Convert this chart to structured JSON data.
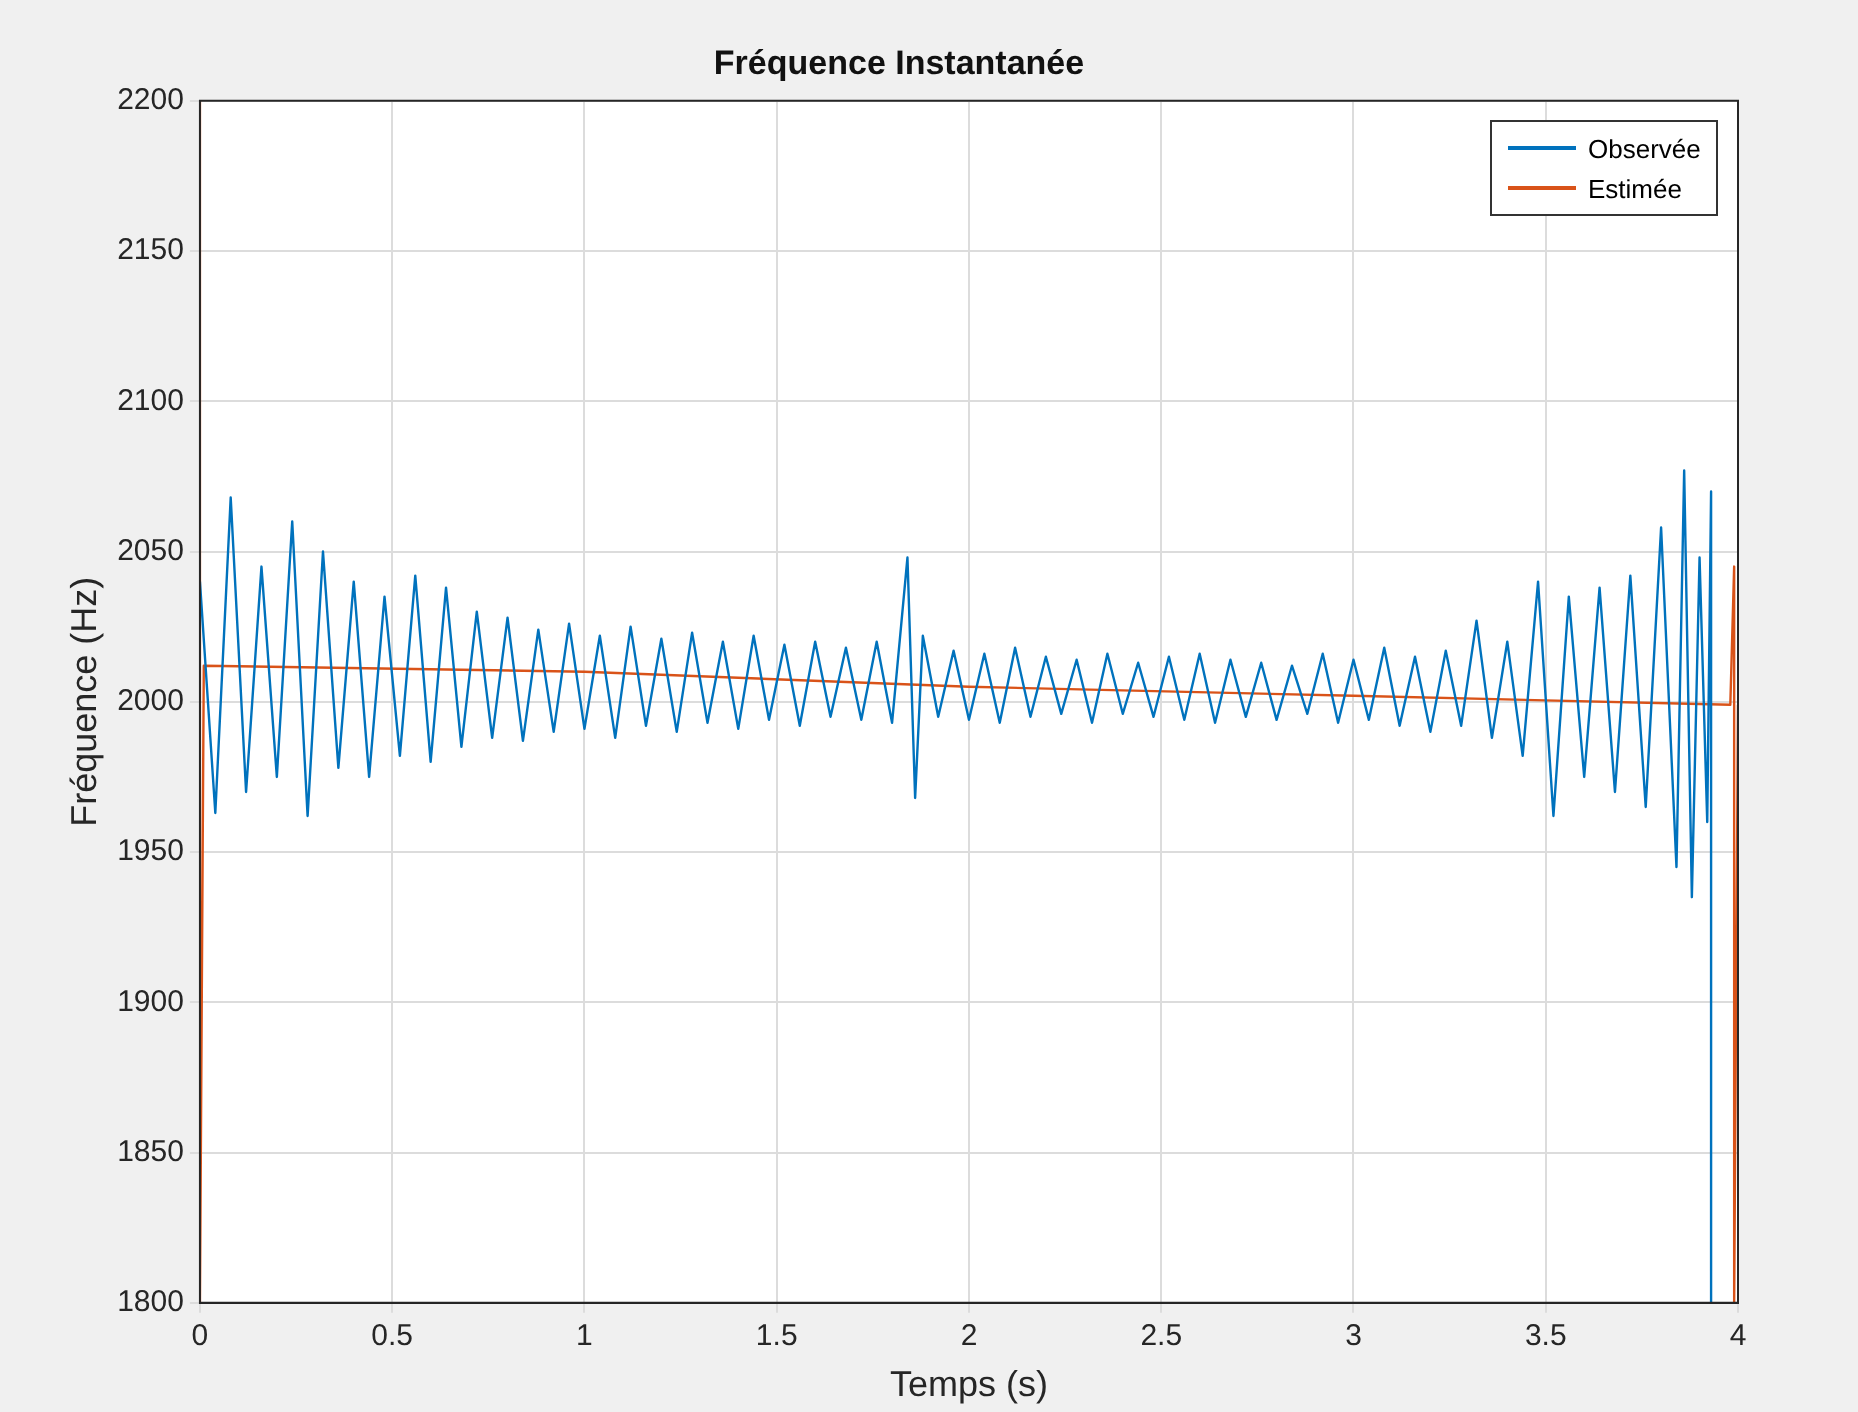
{
  "chart_data": {
    "type": "line",
    "title": "Fréquence Instantanée",
    "xlabel": "Temps (s)",
    "ylabel": "Fréquence (Hz)",
    "xlim": [
      0,
      4
    ],
    "xticks": [
      0,
      0.5,
      1,
      1.5,
      2,
      2.5,
      3,
      3.5,
      4
    ],
    "ylim": [
      1800,
      2200
    ],
    "yticks": [
      1800,
      1850,
      1900,
      1950,
      2000,
      2050,
      2100,
      2150,
      2200
    ],
    "grid": true,
    "legend": "top right",
    "marker": "none",
    "line_style": "solid",
    "series": [
      {
        "name": "Observée",
        "color": "#0072bd",
        "x": [
          0,
          0.04,
          0.08,
          0.12,
          0.16,
          0.2,
          0.24,
          0.28,
          0.32,
          0.36,
          0.4,
          0.44,
          0.48,
          0.52,
          0.56,
          0.6,
          0.64,
          0.68,
          0.72,
          0.76,
          0.8,
          0.84,
          0.88,
          0.92,
          0.96,
          1,
          1.04,
          1.08,
          1.12,
          1.16,
          1.2,
          1.24,
          1.28,
          1.32,
          1.36,
          1.4,
          1.44,
          1.48,
          1.52,
          1.56,
          1.6,
          1.64,
          1.68,
          1.72,
          1.76,
          1.8,
          1.84,
          1.86,
          1.88,
          1.92,
          1.96,
          2,
          2.04,
          2.08,
          2.12,
          2.16,
          2.2,
          2.24,
          2.28,
          2.32,
          2.36,
          2.4,
          2.44,
          2.48,
          2.52,
          2.56,
          2.6,
          2.64,
          2.68,
          2.72,
          2.76,
          2.8,
          2.84,
          2.88,
          2.92,
          2.96,
          3,
          3.04,
          3.08,
          3.12,
          3.16,
          3.2,
          3.24,
          3.28,
          3.32,
          3.36,
          3.4,
          3.44,
          3.48,
          3.52,
          3.56,
          3.6,
          3.64,
          3.68,
          3.72,
          3.76,
          3.8,
          3.84,
          3.86,
          3.88,
          3.9,
          3.92,
          3.93,
          3.93
        ],
        "values": [
          2040,
          1963,
          2068,
          1970,
          2045,
          1975,
          2060,
          1962,
          2050,
          1978,
          2040,
          1975,
          2035,
          1982,
          2042,
          1980,
          2038,
          1985,
          2030,
          1988,
          2028,
          1987,
          2024,
          1990,
          2026,
          1991,
          2022,
          1988,
          2025,
          1992,
          2021,
          1990,
          2023,
          1993,
          2020,
          1991,
          2022,
          1994,
          2019,
          1992,
          2020,
          1995,
          2018,
          1994,
          2020,
          1993,
          2048,
          1968,
          2022,
          1995,
          2017,
          1994,
          2016,
          1993,
          2018,
          1995,
          2015,
          1996,
          2014,
          1993,
          2016,
          1996,
          2013,
          1995,
          2015,
          1994,
          2016,
          1993,
          2014,
          1995,
          2013,
          1994,
          2012,
          1996,
          2016,
          1993,
          2014,
          1994,
          2018,
          1992,
          2015,
          1990,
          2017,
          1992,
          2027,
          1988,
          2020,
          1982,
          2040,
          1962,
          2035,
          1975,
          2038,
          1970,
          2042,
          1965,
          2058,
          1945,
          2077,
          1935,
          2048,
          1960,
          2070,
          1800
        ]
      },
      {
        "name": "Estimée",
        "color": "#d95319",
        "x": [
          0,
          0,
          0.01,
          1,
          2,
          3,
          3.98,
          3.99,
          3.99,
          4
        ],
        "values": [
          2200,
          1800,
          2012,
          2010,
          2005,
          2002,
          1999,
          2045,
          1800,
          1999
        ]
      }
    ]
  }
}
